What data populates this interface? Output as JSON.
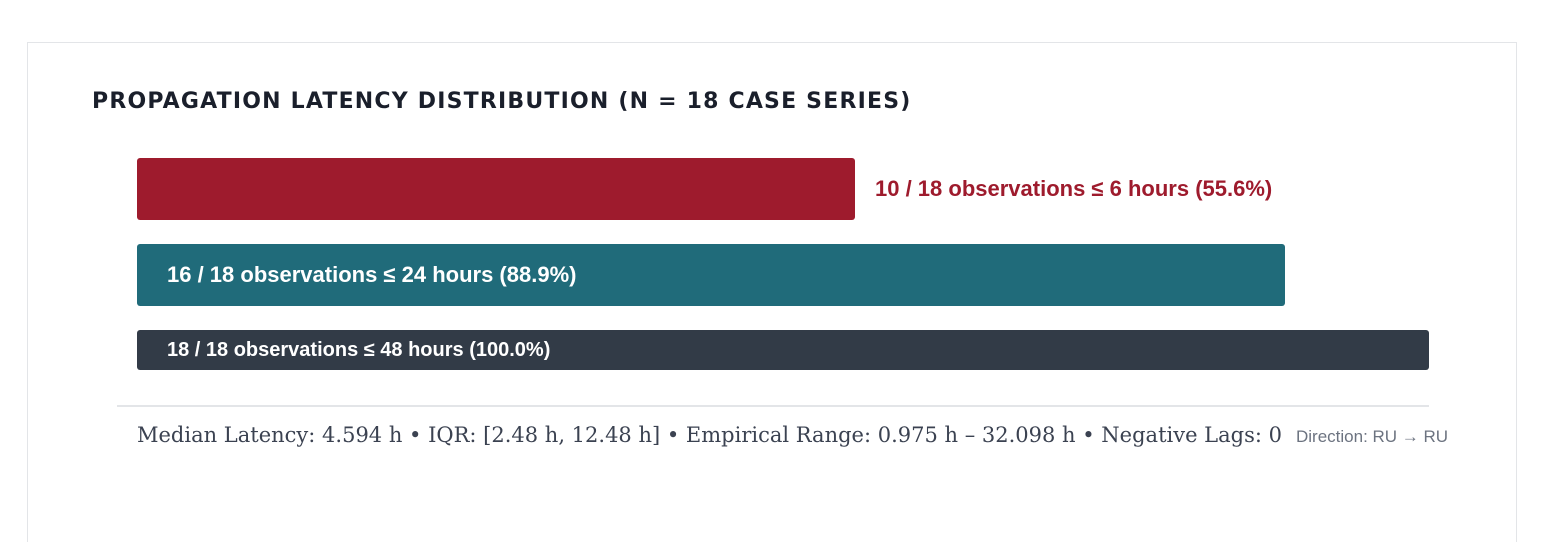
{
  "chart_data": {
    "type": "bar",
    "orientation": "horizontal",
    "title": "PROPAGATION LATENCY DISTRIBUTION (N = 18 CASE SERIES)",
    "total": 18,
    "xlim": [
      0,
      18
    ],
    "grid": false,
    "bars": [
      {
        "value": 10,
        "label": "10 / 18 observations ≤ 6 hours (55.6%)",
        "color": "#9e1b2d",
        "label_position": "outside"
      },
      {
        "value": 16,
        "label": "16 / 18 observations ≤ 24 hours (88.9%)",
        "color": "#206b7a",
        "label_position": "inside"
      },
      {
        "value": 18,
        "label": "18 / 18 observations ≤ 48 hours (100.0%)",
        "color": "#323b47",
        "label_position": "inside"
      }
    ]
  },
  "footer": {
    "stats": "Median Latency: 4.594 h • IQR: [2.48 h, 12.48 h] • Empirical Range: 0.975 h – 32.098 h • Negative Lags: 0",
    "direction": "Direction: RU → RU"
  }
}
